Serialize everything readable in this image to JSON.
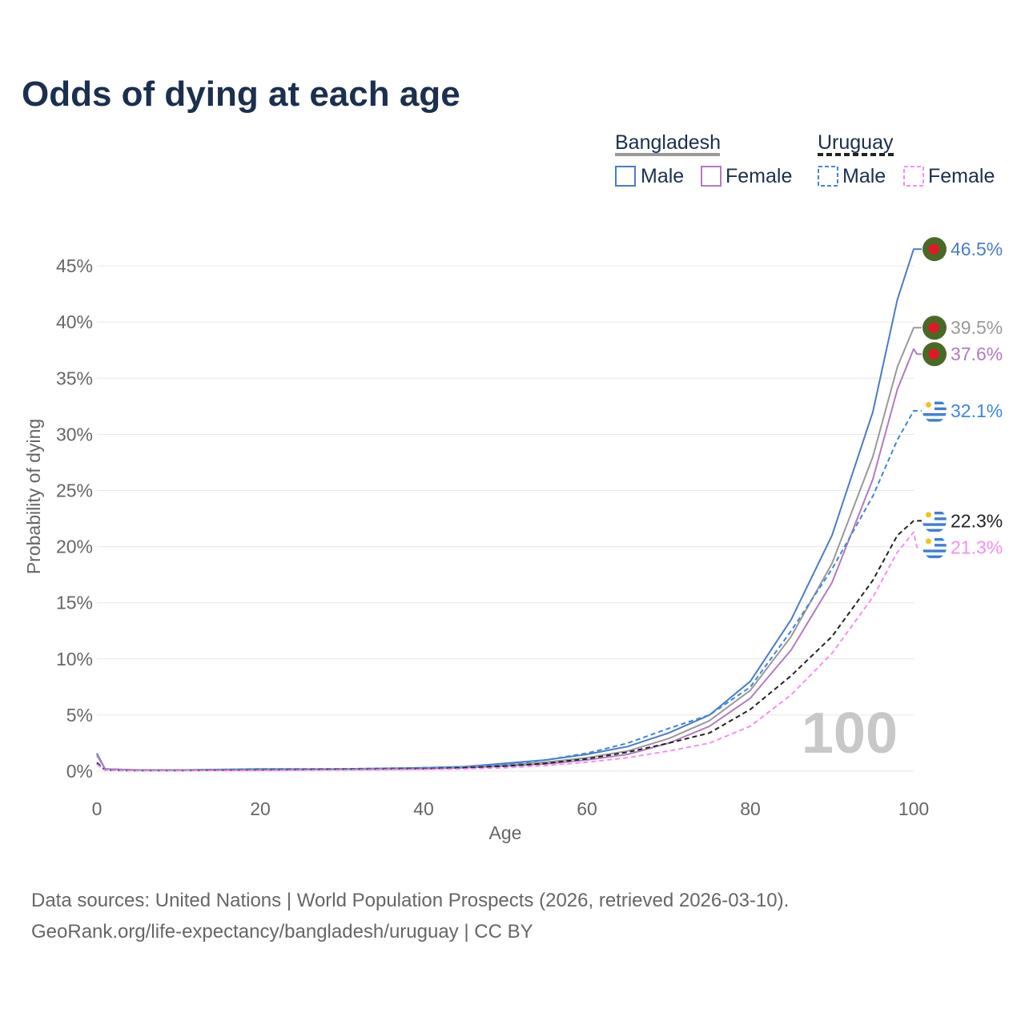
{
  "title": "Odds of dying at each age",
  "legend": {
    "groups": [
      {
        "name": "Bangladesh",
        "items": [
          {
            "label": "Male"
          },
          {
            "label": "Female"
          }
        ]
      },
      {
        "name": "Uruguay",
        "items": [
          {
            "label": "Male"
          },
          {
            "label": "Female"
          }
        ]
      }
    ]
  },
  "watermark": "100",
  "source_lines": [
    "Data sources: United Nations | World Population Prospects (2026, retrieved 2026-03-10).",
    "GeoRank.org/life-expectancy/bangladesh/uruguay | CC BY"
  ],
  "flags": {
    "bangladesh": "Bangladesh flag",
    "uruguay": "Uruguay flag"
  },
  "chart_data": {
    "type": "line",
    "title": "Odds of dying at each age",
    "xlabel": "Age",
    "ylabel": "Probability of dying",
    "xlim": [
      0,
      100
    ],
    "ylim": [
      0,
      47
    ],
    "x_ticks": [
      0,
      20,
      40,
      60,
      80,
      100
    ],
    "y_ticks": [
      0,
      5,
      10,
      15,
      20,
      25,
      30,
      35,
      40,
      45
    ],
    "x_tick_labels": [
      "0",
      "20",
      "40",
      "60",
      "80",
      "100"
    ],
    "y_tick_labels": [
      "0%",
      "5%",
      "10%",
      "15%",
      "20%",
      "25%",
      "30%",
      "35%",
      "40%",
      "45%"
    ],
    "grid": true,
    "legend_position": "top-right",
    "x": [
      0,
      1,
      5,
      10,
      20,
      30,
      40,
      45,
      50,
      55,
      60,
      65,
      70,
      75,
      80,
      85,
      90,
      95,
      98,
      100
    ],
    "series": [
      {
        "name": "Bangladesh Male",
        "country": "Bangladesh",
        "sex": "Male",
        "color": "#4a7cc9",
        "dash": false,
        "flag": "bangladesh",
        "end_label": "46.5%",
        "values": [
          1.6,
          0.2,
          0.1,
          0.1,
          0.2,
          0.2,
          0.3,
          0.4,
          0.7,
          1.0,
          1.5,
          2.2,
          3.4,
          5.0,
          8.0,
          13.5,
          21.0,
          32.0,
          42.0,
          46.5
        ]
      },
      {
        "name": "Both sexes",
        "country": "Bangladesh",
        "sex": "Both",
        "color": "#999999",
        "dash": false,
        "flag": "bangladesh",
        "end_label": "39.5%",
        "values": [
          1.5,
          0.2,
          0.1,
          0.1,
          0.15,
          0.2,
          0.25,
          0.35,
          0.55,
          0.8,
          1.2,
          1.8,
          2.9,
          4.5,
          7.2,
          12.0,
          18.5,
          28.0,
          36.0,
          39.5
        ]
      },
      {
        "name": "Bangladesh Female",
        "country": "Bangladesh",
        "sex": "Female",
        "color": "#b07cbf",
        "dash": false,
        "flag": "bangladesh",
        "end_label": "37.6%",
        "values": [
          1.4,
          0.2,
          0.1,
          0.1,
          0.1,
          0.15,
          0.2,
          0.3,
          0.45,
          0.65,
          1.0,
          1.5,
          2.5,
          4.0,
          6.5,
          10.8,
          16.8,
          26.0,
          34.0,
          37.6
        ]
      },
      {
        "name": "Uruguay Male",
        "country": "Uruguay",
        "sex": "Male",
        "color": "#3d86e0",
        "dash": true,
        "flag": "uruguay",
        "end_label": "32.1%",
        "values": [
          0.8,
          0.1,
          0.05,
          0.05,
          0.15,
          0.2,
          0.3,
          0.4,
          0.6,
          1.0,
          1.6,
          2.5,
          3.8,
          5.0,
          7.5,
          12.5,
          18.0,
          24.5,
          29.5,
          32.1
        ]
      },
      {
        "name": "Uruguay Both sexes",
        "country": "Uruguay",
        "sex": "Both",
        "color": "#222222",
        "dash": true,
        "flag": "uruguay",
        "end_label": "22.3%",
        "values": [
          0.7,
          0.08,
          0.04,
          0.04,
          0.1,
          0.15,
          0.2,
          0.3,
          0.45,
          0.7,
          1.1,
          1.7,
          2.5,
          3.4,
          5.5,
          8.5,
          12.0,
          17.0,
          21.0,
          22.3
        ]
      },
      {
        "name": "Uruguay Female",
        "country": "Uruguay",
        "sex": "Female",
        "color": "#f58ef0",
        "dash": true,
        "flag": "uruguay",
        "end_label": "21.3%",
        "values": [
          0.6,
          0.07,
          0.03,
          0.03,
          0.06,
          0.1,
          0.15,
          0.2,
          0.3,
          0.5,
          0.8,
          1.2,
          1.8,
          2.5,
          4.0,
          6.8,
          10.5,
          15.5,
          19.5,
          21.3
        ]
      }
    ]
  }
}
